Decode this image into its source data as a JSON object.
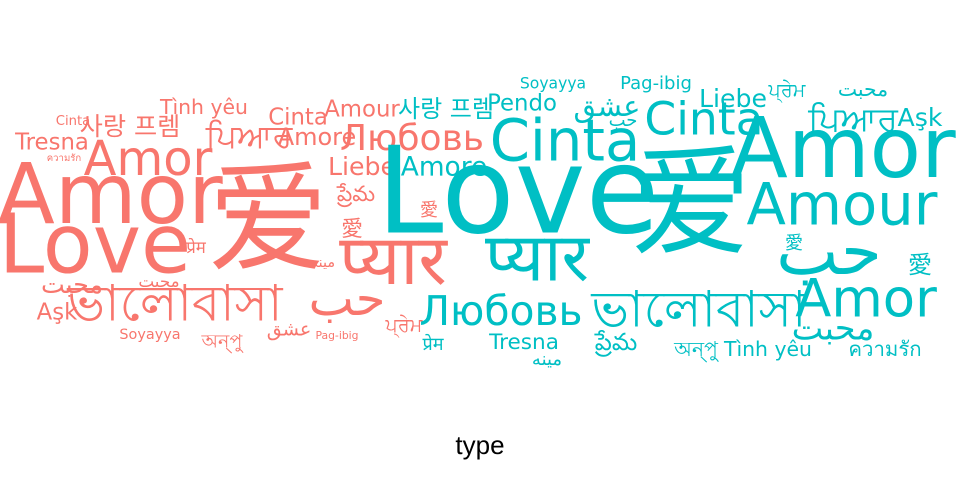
{
  "chart_data": {
    "type": "wordcloud",
    "title": "",
    "legend": {
      "title": "type",
      "placement": "bottom"
    },
    "colors": {
      "A": "#F8766D",
      "B": "#00BFC4"
    },
    "groups": [
      {
        "color_key": "A",
        "words": [
          {
            "text": "爱",
            "size": 10
          },
          {
            "text": "Amor",
            "size": 7
          },
          {
            "text": "Love",
            "size": 6.8
          },
          {
            "text": "प्यार",
            "size": 5.8
          },
          {
            "text": "ভালোবাসা",
            "size": 4.2
          },
          {
            "text": "Amor",
            "size": 4
          },
          {
            "text": "حب",
            "size": 4
          },
          {
            "text": "Любовь",
            "size": 3
          },
          {
            "text": "ਪਿਆਰ",
            "size": 2.7
          },
          {
            "text": "사랑 프렘",
            "size": 2.1
          },
          {
            "text": "Liebe",
            "size": 2.1
          },
          {
            "text": "محبت",
            "size": 2.1
          },
          {
            "text": "Amore",
            "size": 2
          },
          {
            "text": "Tresna",
            "size": 1.9
          },
          {
            "text": "Aşk",
            "size": 1.9
          },
          {
            "text": "Cinta",
            "size": 1.9
          },
          {
            "text": "Amour",
            "size": 1.9
          },
          {
            "text": "ప్రేమ",
            "size": 1.8
          },
          {
            "text": "Tình yêu",
            "size": 1.7
          },
          {
            "text": "愛",
            "size": 1.8
          },
          {
            "text": "愛",
            "size": 1.5
          },
          {
            "text": "অন্পু",
            "size": 1.6
          },
          {
            "text": "عشق",
            "size": 1.6
          },
          {
            "text": "ਪ੍ਰੇਮ",
            "size": 1.6
          },
          {
            "text": "प्रेम",
            "size": 1.4
          },
          {
            "text": "محبت",
            "size": 1.4
          },
          {
            "text": "Soyayya",
            "size": 1.2
          },
          {
            "text": "مینه",
            "size": 1.2
          },
          {
            "text": "Cinta",
            "size": 1.1
          },
          {
            "text": "Pag-ibig",
            "size": 0.9
          },
          {
            "text": "ความรัก",
            "size": 0.8
          }
        ]
      },
      {
        "color_key": "B",
        "words": [
          {
            "text": "Love",
            "size": 10
          },
          {
            "text": "爱",
            "size": 10
          },
          {
            "text": "Amor",
            "size": 7
          },
          {
            "text": "प्यार",
            "size": 5.6
          },
          {
            "text": "حب",
            "size": 5.5
          },
          {
            "text": "Cinta",
            "size": 4.8
          },
          {
            "text": "Amour",
            "size": 4.8
          },
          {
            "text": "ভালোবাসা",
            "size": 4.2
          },
          {
            "text": "Amor",
            "size": 4.4
          },
          {
            "text": "Cinta",
            "size": 3.8
          },
          {
            "text": "Любовь",
            "size": 3.4
          },
          {
            "text": "محبت",
            "size": 2.8
          },
          {
            "text": "ਪਿਆਰ",
            "size": 2.8
          },
          {
            "text": "عشق",
            "size": 2.4
          },
          {
            "text": "Amore",
            "size": 2.2
          },
          {
            "text": "Liebe",
            "size": 2.1
          },
          {
            "text": "Aşk",
            "size": 2.1
          },
          {
            "text": "사랑 프렘",
            "size": 2
          },
          {
            "text": "Pendo",
            "size": 1.9
          },
          {
            "text": "愛",
            "size": 2
          },
          {
            "text": "ప్రేమ",
            "size": 2
          },
          {
            "text": "Tresna",
            "size": 1.8
          },
          {
            "text": "Tình yêu",
            "size": 1.7
          },
          {
            "text": "ความรัก",
            "size": 1.7
          },
          {
            "text": "অন্পু",
            "size": 1.7
          },
          {
            "text": "محبت",
            "size": 1.7
          },
          {
            "text": "حب",
            "size": 1.5
          },
          {
            "text": "ਪ੍ਰੇਮ",
            "size": 1.6
          },
          {
            "text": "Pag-ibig",
            "size": 1.5
          },
          {
            "text": "愛",
            "size": 1.5
          },
          {
            "text": "प्रेम",
            "size": 1.5
          },
          {
            "text": "مینه",
            "size": 1.5
          },
          {
            "text": "Soyayya",
            "size": 1.3
          }
        ]
      }
    ]
  }
}
